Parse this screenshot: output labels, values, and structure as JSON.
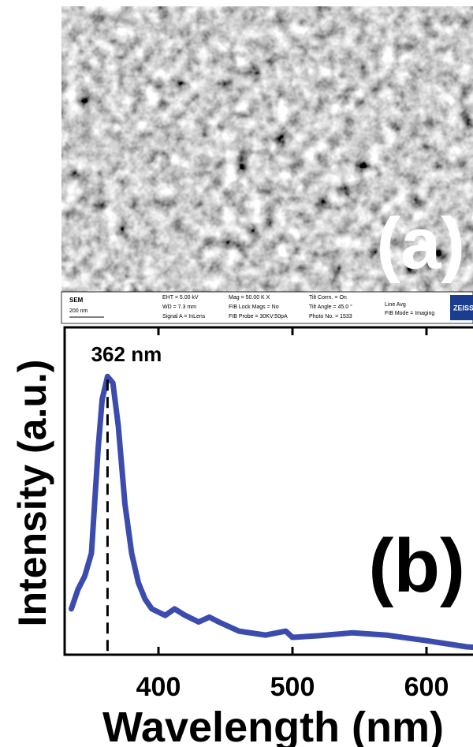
{
  "image_panel": {
    "label": "(a)",
    "info_bar": [
      "SEM",
      "200 nm",
      "EHT =  5.00 kV",
      "WD =  7.3 mm",
      "Signal A = InLens",
      "Mag =  50.00 K X",
      "FIB Lock Mags = No",
      "FIB Probe = 30KV:50pA",
      "Tilt Corrn. = On",
      "Tilt Angle =  45.0 °",
      "Photo No. = 1533",
      "Line Avg",
      "FIB Mode = Imaging",
      "ZEISS"
    ]
  },
  "chart_data": {
    "type": "line",
    "panel_label": "(b)",
    "x_label": "Wavelength (nm)",
    "y_label": "Intensity (a.u.)",
    "annotation": {
      "text": "362 nm",
      "x": 362
    },
    "x": [
      335,
      340,
      345,
      350,
      355,
      358,
      362,
      366,
      370,
      375,
      380,
      385,
      390,
      395,
      400,
      405,
      412,
      420,
      430,
      438,
      445,
      460,
      480,
      495,
      500,
      520,
      545,
      570,
      600,
      630,
      650
    ],
    "series": [
      {
        "name": "PL",
        "color": "#3b4cae",
        "values": [
          0.14,
          0.2,
          0.24,
          0.31,
          0.63,
          0.78,
          0.85,
          0.83,
          0.7,
          0.46,
          0.31,
          0.22,
          0.17,
          0.14,
          0.13,
          0.12,
          0.14,
          0.12,
          0.1,
          0.115,
          0.1,
          0.072,
          0.06,
          0.072,
          0.053,
          0.058,
          0.067,
          0.06,
          0.043,
          0.024,
          0.019
        ]
      }
    ],
    "xlim": [
      330,
      650
    ],
    "ylim": [
      0,
      1
    ],
    "xticks": [
      400,
      500,
      600
    ]
  }
}
